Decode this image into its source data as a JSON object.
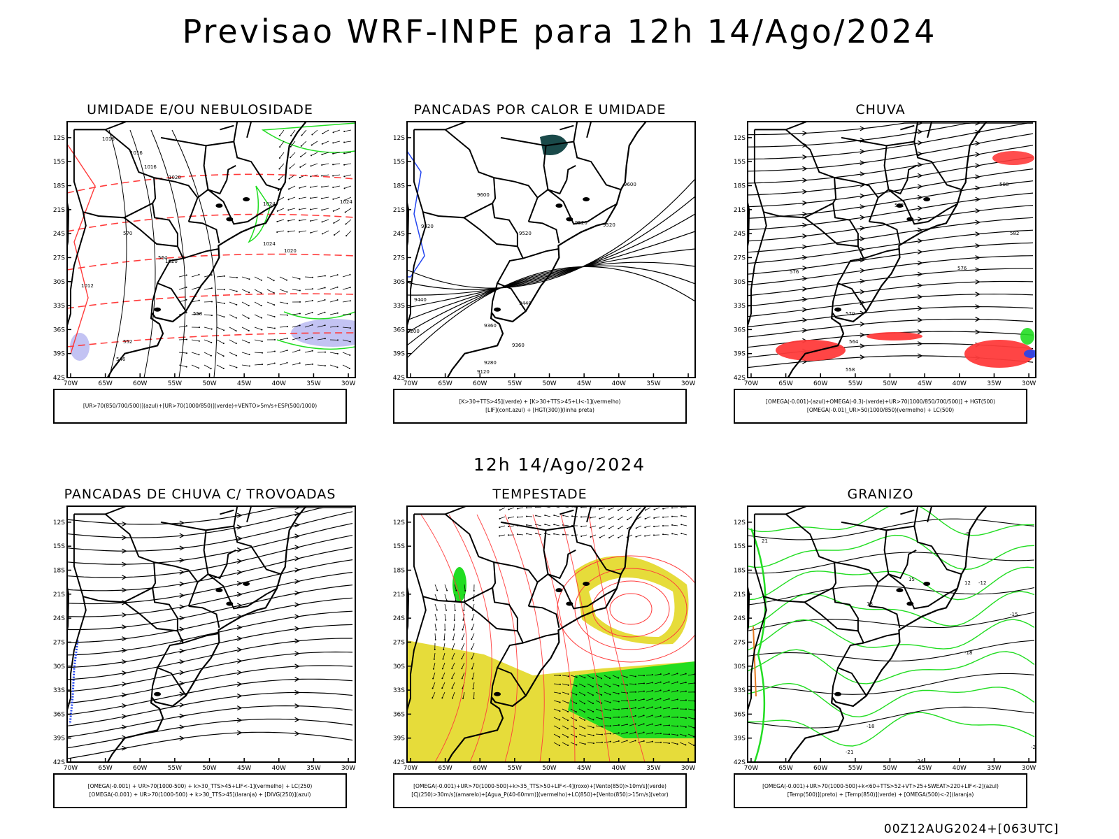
{
  "header": {
    "title": "Previsao WRF-INPE  para 12h 14/Ago/2024",
    "mid_title": "12h 14/Ago/2024",
    "footer": "00Z12AUG2024+[063UTC]"
  },
  "axes": {
    "lat_ticks": [
      "12S",
      "15S",
      "18S",
      "21S",
      "24S",
      "27S",
      "30S",
      "33S",
      "36S",
      "39S",
      "42S"
    ],
    "lon_ticks": [
      "70W",
      "65W",
      "60W",
      "55W",
      "50W",
      "45W",
      "40W",
      "35W",
      "30W"
    ]
  },
  "colors": {
    "red": "#ff3b3b",
    "green": "#22dd22",
    "blue": "#2244ee",
    "lavender": "#b4b4f0",
    "yellow": "#e6dc3a",
    "teal": "#1a4a4a"
  },
  "panels": [
    {
      "id": "umidade",
      "title": "UMIDADE E/OU NEBULOSIDADE",
      "legend": [
        "[UR>70(850/700/500)](azul)+[UR>70(1000/850)](verde)+VENTO>5m/s+ESP(500/1000)"
      ],
      "labels": [
        "1016",
        "1016",
        "1016",
        "1020",
        "1024",
        "1024",
        "1020",
        "1024",
        "1012",
        "1020",
        "570",
        "564",
        "558",
        "552",
        "546"
      ]
    },
    {
      "id": "pancadas_calor",
      "title": "PANCADAS POR CALOR E UMIDADE",
      "legend": [
        "[K>30+TTS>45](verde) + [K>30+TTS>45+LI<-1](vermelho)",
        "[LIF](cont.azul) + [HGT(300)](linha preta)"
      ],
      "labels": [
        "9600",
        "9600",
        "9520",
        "9520",
        "9520",
        "9520",
        "9440",
        "9440",
        "9360",
        "9360",
        "9280",
        "9200",
        "9120"
      ]
    },
    {
      "id": "chuva",
      "title": "CHUVA",
      "legend": [
        "[OMEGA(-0.001)-(azul)+OMEGA(-0.3)-(verde)+UR>70(1000/850/700/500)] + HGT(500)",
        "[OMEGA(-0.01)_UR>50(1000/850)(vermelho) + LC(500)"
      ],
      "labels": [
        "588",
        "582",
        "582",
        "576",
        "576",
        "570",
        "564",
        "558"
      ]
    },
    {
      "id": "trovoadas",
      "title": "PANCADAS DE CHUVA C/ TROVOADAS",
      "legend": [
        "[OMEGA(-0.001) + UR>70(1000-500) + k>30_TTS>45+LIF<-1](vermelho) + LC(250)",
        "[OMEGA(-0.001) + UR>70(1000-500) + k>30_TTS>45](laranja) + [DIVG(250)](azul)"
      ],
      "labels": []
    },
    {
      "id": "tempestade",
      "title": "TEMPESTADE",
      "legend": [
        "[OMEGA(-0.001)+UR>70(1000-500)+k>35_TTS>50+LIF<-4](roxo)+[Vento(850)>10m/s](verde)",
        "[CJ(250)>30m/s](amarelo)+[Agua_P(40-60mm)](vermelho)+LC(850)+[Vento(850)>15m/s](vetor)"
      ],
      "labels": []
    },
    {
      "id": "granizo",
      "title": "GRANIZO",
      "legend": [
        "[OMEGA(-0.001)+UR>70(1000-500)+k<60+TTS>52+VT>25+SWEAT>220+LIF<-2](azul)",
        "[Temp(500)](preto) + [Temp(850)](verde) + [OMEGA(500)<-2](laranja)"
      ],
      "labels": [
        "-9",
        "-12",
        "-15",
        "-18",
        "-18",
        "-21",
        "-24",
        "-27",
        "21",
        "18",
        "15",
        "12"
      ]
    }
  ]
}
